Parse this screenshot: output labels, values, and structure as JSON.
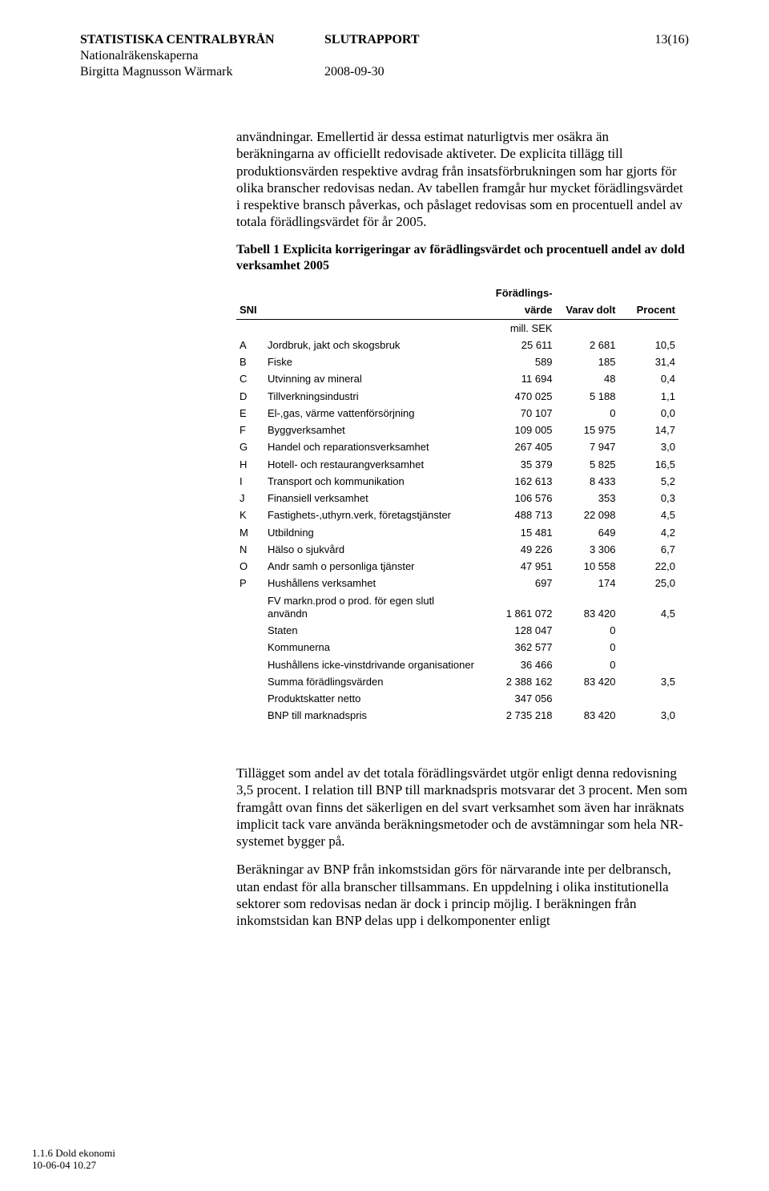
{
  "header": {
    "org": "STATISTISKA CENTRALBYRÅN",
    "dept": "Nationalräkenskaperna",
    "author": "Birgitta Magnusson Wärmark",
    "title": "SLUTRAPPORT",
    "date": "2008-09-30",
    "pagenum": "13(16)"
  },
  "para1": "användningar. Emellertid är dessa estimat naturligtvis mer osäkra än beräkningarna av officiellt redovisade aktiveter. De explicita tillägg till produktionsvärden respektive avdrag från insatsförbrukningen som har gjorts för olika branscher redovisas nedan. Av tabellen framgår hur mycket förädlingsvärdet i respektive bransch påverkas, och påslaget redovisas som en procentuell andel av totala förädlingsvärdet för år 2005.",
  "table_caption": "Tabell 1 Explicita korrigeringar av förädlingsvärdet och procentuell andel av dold verksamhet 2005",
  "table": {
    "headers": {
      "sni": "SNI",
      "val_line1": "Förädlings-",
      "val_line2": "värde",
      "unit": "mill. SEK",
      "hidden": "Varav dolt",
      "pct": "Procent"
    },
    "rows": [
      {
        "sni": "A",
        "desc": "Jordbruk, jakt och skogsbruk",
        "v1": "25 611",
        "v2": "2 681",
        "v3": "10,5"
      },
      {
        "sni": "B",
        "desc": "Fiske",
        "v1": "589",
        "v2": "185",
        "v3": "31,4"
      },
      {
        "sni": "C",
        "desc": "Utvinning av mineral",
        "v1": "11 694",
        "v2": "48",
        "v3": "0,4"
      },
      {
        "sni": "D",
        "desc": "Tillverkningsindustri",
        "v1": "470 025",
        "v2": "5 188",
        "v3": "1,1"
      },
      {
        "sni": "E",
        "desc": "El-,gas, värme vattenförsörjning",
        "v1": "70 107",
        "v2": "0",
        "v3": "0,0"
      },
      {
        "sni": "F",
        "desc": "Byggverksamhet",
        "v1": "109 005",
        "v2": "15 975",
        "v3": "14,7"
      },
      {
        "sni": "G",
        "desc": "Handel och reparationsverksamhet",
        "v1": "267 405",
        "v2": "7 947",
        "v3": "3,0"
      },
      {
        "sni": "H",
        "desc": "Hotell- och restaurangverksamhet",
        "v1": "35 379",
        "v2": "5 825",
        "v3": "16,5"
      },
      {
        "sni": "I",
        "desc": "Transport och kommunikation",
        "v1": "162 613",
        "v2": "8 433",
        "v3": "5,2"
      },
      {
        "sni": "J",
        "desc": "Finansiell verksamhet",
        "v1": "106 576",
        "v2": "353",
        "v3": "0,3"
      },
      {
        "sni": "K",
        "desc": "Fastighets-,uthyrn.verk, företagstjänster",
        "v1": "488 713",
        "v2": "22 098",
        "v3": "4,5"
      },
      {
        "sni": "M",
        "desc": "Utbildning",
        "v1": "15 481",
        "v2": "649",
        "v3": "4,2"
      },
      {
        "sni": "N",
        "desc": "Hälso o sjukvård",
        "v1": "49 226",
        "v2": "3 306",
        "v3": "6,7"
      },
      {
        "sni": "O",
        "desc": "Andr samh o personliga tjänster",
        "v1": "47 951",
        "v2": "10 558",
        "v3": "22,0"
      },
      {
        "sni": "P",
        "desc": "Hushållens verksamhet",
        "v1": "697",
        "v2": "174",
        "v3": "25,0"
      },
      {
        "sni": "",
        "desc": "FV markn.prod o prod. för egen slutl användn",
        "v1": "1 861 072",
        "v2": "83 420",
        "v3": "4,5"
      },
      {
        "sni": "",
        "desc": "Staten",
        "v1": "128 047",
        "v2": "0",
        "v3": ""
      },
      {
        "sni": "",
        "desc": "Kommunerna",
        "v1": "362 577",
        "v2": "0",
        "v3": ""
      },
      {
        "sni": "",
        "desc": "Hushållens icke-vinstdrivande organisationer",
        "v1": "36 466",
        "v2": "0",
        "v3": ""
      },
      {
        "sni": "",
        "desc": "Summa förädlingsvärden",
        "v1": "2 388 162",
        "v2": "83 420",
        "v3": "3,5"
      },
      {
        "sni": "",
        "desc": "Produktskatter netto",
        "v1": "347 056",
        "v2": "",
        "v3": ""
      },
      {
        "sni": "",
        "desc": "BNP till marknadspris",
        "v1": "2 735 218",
        "v2": "83 420",
        "v3": "3,0"
      }
    ]
  },
  "para2": "Tillägget som andel av det totala förädlingsvärdet utgör enligt denna redovisning 3,5 procent. I relation till BNP till marknadspris motsvarar det 3 procent. Men som framgått ovan finns det säkerligen en del svart verksamhet som även har inräknats implicit tack vare använda beräkningsmetoder och de avstämningar som hela NR-systemet bygger på.",
  "para3": "Beräkningar av BNP från inkomstsidan görs för närvarande inte per delbransch, utan endast för alla branscher tillsammans. En uppdelning i olika institutionella sektorer som redovisas nedan är dock i princip möjlig. I beräkningen från inkomstsidan kan BNP delas upp i delkomponenter enligt",
  "footer": {
    "line1": "1.1.6 Dold ekonomi",
    "line2": "10-06-04 10.27"
  }
}
